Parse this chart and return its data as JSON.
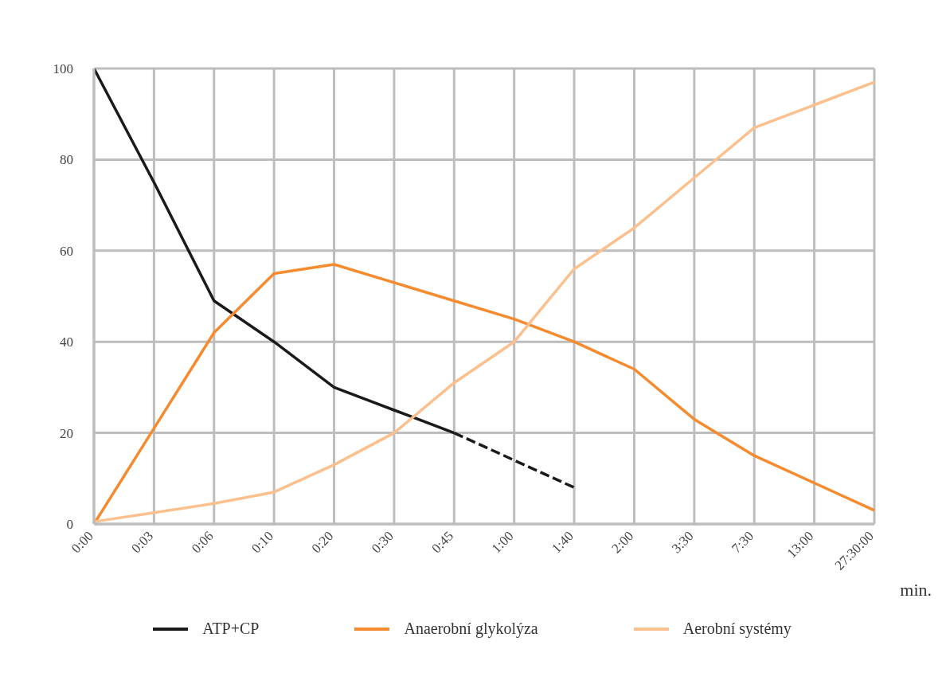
{
  "chart_data": {
    "type": "line",
    "xlabel": "min.",
    "categories": [
      "0:00",
      "0:03",
      "0:06",
      "0:10",
      "0:20",
      "0:30",
      "0:45",
      "1:00",
      "1:40",
      "2:00",
      "3:30",
      "7:30",
      "13:00",
      "27:30:00"
    ],
    "series": [
      {
        "name": "ATP+CP",
        "color": "#1a1a1a",
        "values": [
          100,
          75,
          49,
          40,
          30,
          25,
          20,
          null,
          null,
          null,
          null,
          null,
          null,
          null
        ]
      },
      {
        "color": "#1a1a1a",
        "line_style": "dashed",
        "values": [
          null,
          null,
          null,
          null,
          null,
          null,
          20,
          14,
          8,
          null,
          null,
          null,
          null,
          null
        ]
      },
      {
        "name": "Anaerobní glykolýza",
        "color": "#f58a2e",
        "values": [
          0,
          21,
          42,
          55,
          57,
          53,
          49,
          45,
          40,
          34,
          23,
          15,
          9,
          3
        ]
      },
      {
        "name": "Aerobní systémy",
        "color": "#fbc08d",
        "values": [
          0.5,
          2.5,
          4.5,
          7,
          13,
          20,
          31,
          40,
          56,
          65,
          76,
          87,
          92,
          97
        ]
      }
    ],
    "ylim": [
      0,
      100
    ],
    "yticks": [
      0,
      20,
      40,
      60,
      80,
      100
    ],
    "grid": true,
    "legend": "bottom",
    "line_style": "solid"
  }
}
